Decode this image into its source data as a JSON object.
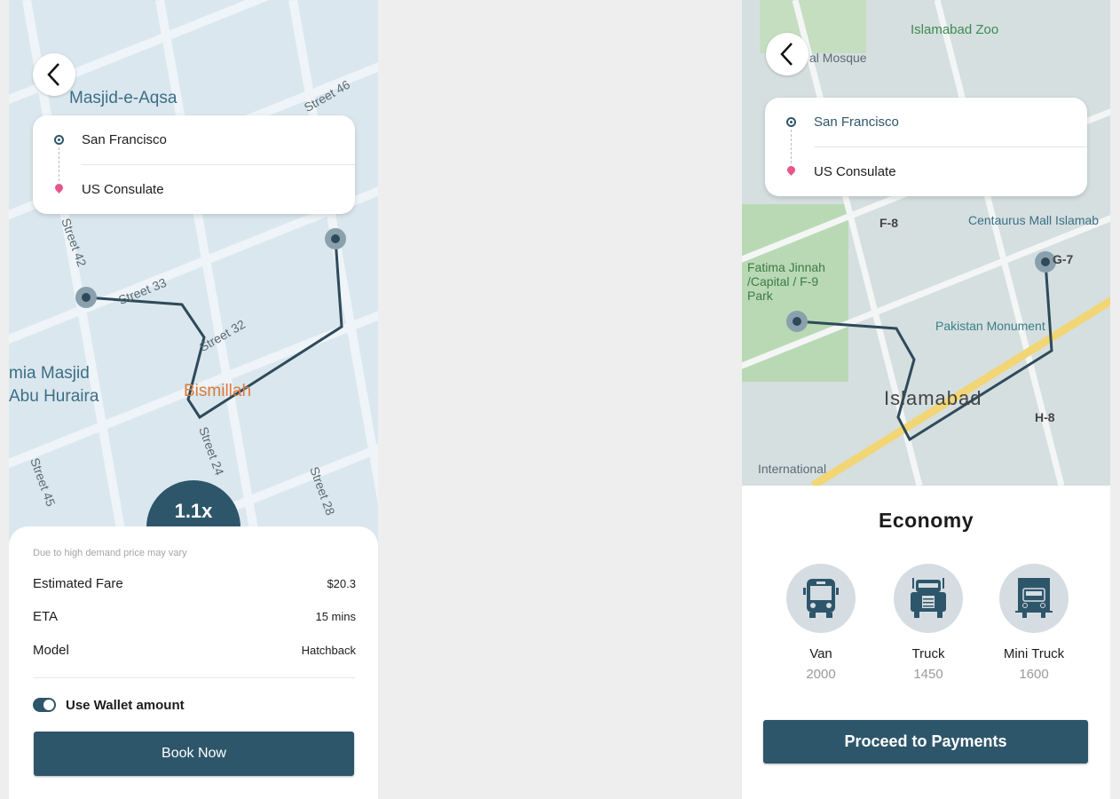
{
  "colors": {
    "primary": "#2e566a",
    "pickup": "#2e566a",
    "dropoff": "#e8558a"
  },
  "left": {
    "map_labels": [
      "Masjid-e-Aqsa",
      "Street 33",
      "Street 32",
      "Street 42",
      "Street 24",
      "Bismillah",
      "mia Masjid",
      "Abu Huraira",
      "Street 45",
      "Street 28",
      "Street 46"
    ],
    "back_icon": "chevron-left-icon",
    "pickup": "San Francisco",
    "dropoff": "US Consulate",
    "surge": "1.1x",
    "note": "Due to high demand price may vary",
    "fare": [
      {
        "label": "Estimated Fare",
        "value": "$20.3"
      },
      {
        "label": "ETA",
        "value": "15 mins"
      },
      {
        "label": "Model",
        "value": "Hatchback"
      }
    ],
    "wallet_label": "Use Wallet amount",
    "wallet_enabled": true,
    "book_label": "Book Now"
  },
  "right": {
    "map_labels": [
      "Islamabad Zoo",
      "al Mosque",
      "F-8",
      "Centaurus Mall Islamab",
      "Fatima Jinnah /Capital / F-9 Park",
      "G-7",
      "Pakistan Monument",
      "Islamabad",
      "H-8",
      "International"
    ],
    "back_icon": "chevron-left-icon",
    "pickup": "San Francisco",
    "dropoff": "US Consulate",
    "title": "Economy",
    "vehicles": [
      {
        "name": "Van",
        "price": "2000",
        "icon": "bus-icon"
      },
      {
        "name": "Truck",
        "price": "1450",
        "icon": "truck-icon"
      },
      {
        "name": "Mini Truck",
        "price": "1600",
        "icon": "mini-truck-icon"
      }
    ],
    "proceed_label": "Proceed to Payments"
  }
}
